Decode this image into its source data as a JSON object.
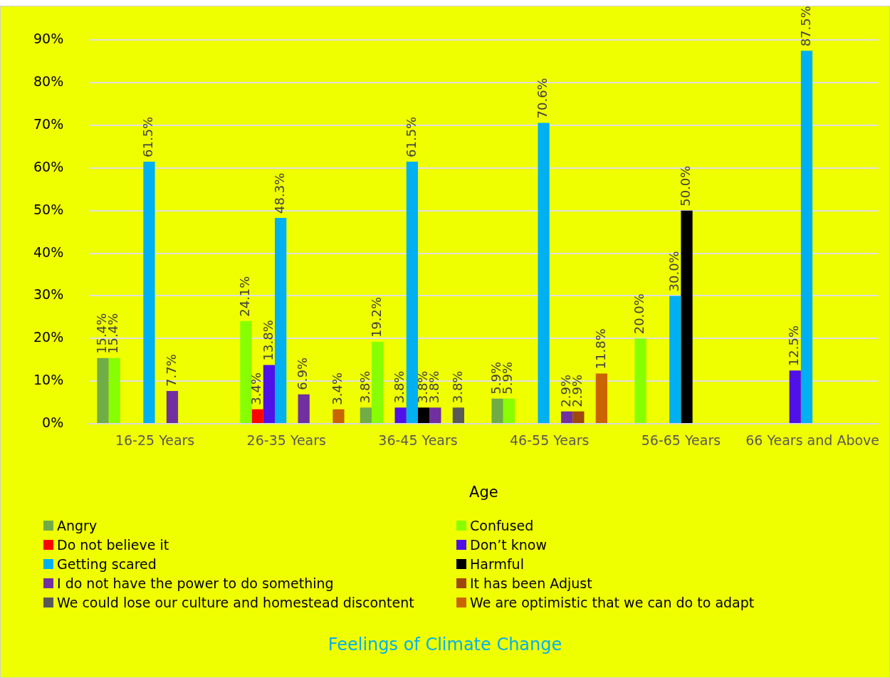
{
  "chart_data": {
    "type": "bar",
    "title": "Feelings of Climate Change",
    "xlabel": "Age",
    "categories": [
      "16-25 Years",
      "26-35 Years",
      "36-45 Years",
      "46-55 Years",
      "56-65 Years",
      "66 Years and Above"
    ],
    "ylim": [
      0,
      90
    ],
    "yticks": [
      {
        "value": 0,
        "label": "0%"
      },
      {
        "value": 10,
        "label": "10%"
      },
      {
        "value": 20,
        "label": "20%"
      },
      {
        "value": 30,
        "label": "30%"
      },
      {
        "value": 40,
        "label": "40%"
      },
      {
        "value": 50,
        "label": "50%"
      },
      {
        "value": 60,
        "label": "60%"
      },
      {
        "value": 70,
        "label": "70%"
      },
      {
        "value": 80,
        "label": "80%"
      },
      {
        "value": 90,
        "label": "90%"
      }
    ],
    "grid": "y",
    "legend": "bottom",
    "series": [
      {
        "name": "Angry",
        "color": "#70ad47",
        "values": [
          15.4,
          null,
          3.8,
          5.9,
          null,
          null
        ],
        "value_labels": [
          "15.4%",
          null,
          "3.8%",
          "5.9%",
          null,
          null
        ]
      },
      {
        "name": "Confused",
        "color": "#88ff00",
        "values": [
          15.4,
          24.1,
          19.2,
          5.9,
          20.0,
          null
        ],
        "value_labels": [
          "15.4%",
          "24.1%",
          "19.2%",
          "5.9%",
          "20.0%",
          null
        ]
      },
      {
        "name": "Do not believe it",
        "color": "#ff0000",
        "values": [
          null,
          3.4,
          null,
          null,
          null,
          null
        ],
        "value_labels": [
          null,
          "3.4%",
          null,
          null,
          null,
          null
        ]
      },
      {
        "name": "Don’t know",
        "color": "#5010e8",
        "values": [
          null,
          13.8,
          3.8,
          null,
          null,
          12.5
        ],
        "value_labels": [
          null,
          "13.8%",
          "3.8%",
          null,
          null,
          "12.5%"
        ]
      },
      {
        "name": "Getting scared",
        "color": "#00b0f0",
        "values": [
          61.5,
          48.3,
          61.5,
          70.6,
          30.0,
          87.5
        ],
        "value_labels": [
          "61.5%",
          "48.3%",
          "61.5%",
          "70.6%",
          "30.0%",
          "87.5%"
        ]
      },
      {
        "name": "Harmful",
        "color": "#000000",
        "values": [
          null,
          null,
          3.8,
          null,
          50.0,
          null
        ],
        "value_labels": [
          null,
          null,
          "3.8%",
          null,
          "50.0%",
          null
        ]
      },
      {
        "name": "I do not have the power to do something",
        "color": "#7030a0",
        "values": [
          7.7,
          6.9,
          3.8,
          2.9,
          null,
          null
        ],
        "value_labels": [
          "7.7%",
          "6.9%",
          "3.8%",
          "2.9%",
          null,
          null
        ]
      },
      {
        "name": "It has been Adjust",
        "color": "#9e480e",
        "values": [
          null,
          null,
          null,
          2.9,
          null,
          null
        ],
        "value_labels": [
          null,
          null,
          null,
          "2.9%",
          null,
          null
        ]
      },
      {
        "name": "We could lose our culture and homestead discontent",
        "color": "#595959",
        "values": [
          null,
          null,
          3.8,
          null,
          null,
          null
        ],
        "value_labels": [
          null,
          null,
          "3.8%",
          null,
          null,
          null
        ]
      },
      {
        "name": "We are optimistic that we can do to adapt",
        "color": "#c96400",
        "values": [
          null,
          3.4,
          null,
          11.8,
          null,
          null
        ],
        "value_labels": [
          null,
          "3.4%",
          null,
          "11.8%",
          null,
          null
        ]
      }
    ]
  }
}
